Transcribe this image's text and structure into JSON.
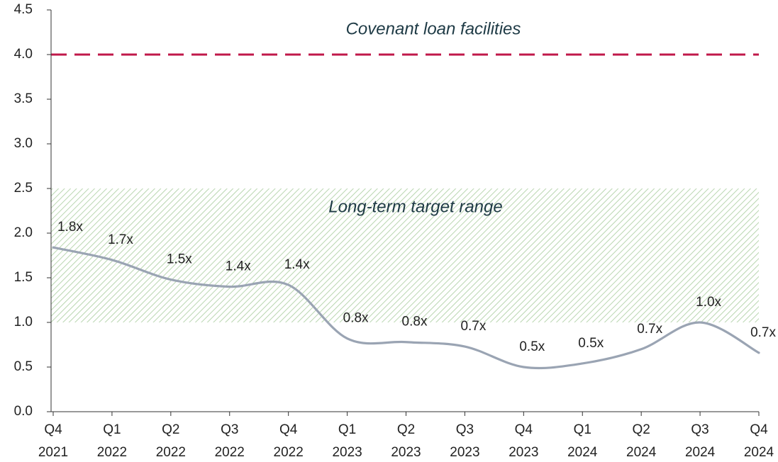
{
  "chart_data": {
    "type": "line",
    "categories": [
      [
        "Q4",
        "2021"
      ],
      [
        "Q1",
        "2022"
      ],
      [
        "Q2",
        "2022"
      ],
      [
        "Q3",
        "2022"
      ],
      [
        "Q4",
        "2022"
      ],
      [
        "Q1",
        "2023"
      ],
      [
        "Q2",
        "2023"
      ],
      [
        "Q3",
        "2023"
      ],
      [
        "Q4",
        "2023"
      ],
      [
        "Q1",
        "2024"
      ],
      [
        "Q2",
        "2024"
      ],
      [
        "Q3",
        "2024"
      ],
      [
        "Q4",
        "2024"
      ]
    ],
    "series": [
      {
        "color": "#9aa4b3",
        "values": [
          1.84,
          1.7,
          1.48,
          1.4,
          1.42,
          0.82,
          0.78,
          0.73,
          0.5,
          0.54,
          0.7,
          1.0,
          0.66
        ],
        "value_labels": [
          "1.8x",
          "1.7x",
          "1.5x",
          "1.4x",
          "1.4x",
          "0.8x",
          "0.8x",
          "0.7x",
          "0.5x",
          "0.5x",
          "0.7x",
          "1.0x",
          "0.7x"
        ]
      }
    ],
    "ylim": [
      0,
      4.5
    ],
    "yticks": [
      {
        "value": 0,
        "label": "0.0"
      },
      0.5,
      {
        "value": 1,
        "label": "1.0"
      },
      1.5,
      {
        "value": 2,
        "label": "2.0"
      },
      2.5,
      {
        "value": 3,
        "label": "3.0"
      },
      3.5,
      {
        "value": 4,
        "label": "4.0"
      },
      4.5
    ],
    "reference_line": {
      "value": 4,
      "label": "Covenant loan facilities",
      "color": "#c0184a"
    },
    "band": {
      "range": [
        1,
        2.5
      ],
      "label": "Long-term target range",
      "color": "#b9d6b0"
    }
  }
}
